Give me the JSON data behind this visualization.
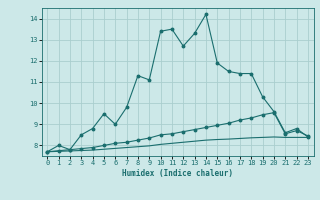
{
  "title": "",
  "xlabel": "Humidex (Indice chaleur)",
  "bg_color": "#cce8e8",
  "grid_color": "#aacece",
  "line_color": "#1a6e6e",
  "xlim": [
    -0.5,
    23.5
  ],
  "ylim": [
    7.5,
    14.5
  ],
  "xticks": [
    0,
    1,
    2,
    3,
    4,
    5,
    6,
    7,
    8,
    9,
    10,
    11,
    12,
    13,
    14,
    15,
    16,
    17,
    18,
    19,
    20,
    21,
    22,
    23
  ],
  "yticks": [
    8,
    9,
    10,
    11,
    12,
    13,
    14
  ],
  "series1_x": [
    0,
    1,
    2,
    3,
    4,
    5,
    6,
    7,
    8,
    9,
    10,
    11,
    12,
    13,
    14,
    15,
    16,
    17,
    18,
    19,
    20,
    21,
    22,
    23
  ],
  "series1_y": [
    7.7,
    8.0,
    7.8,
    8.5,
    8.8,
    9.5,
    9.0,
    9.8,
    11.3,
    11.1,
    13.4,
    13.5,
    12.7,
    13.3,
    14.2,
    11.9,
    11.5,
    11.4,
    11.4,
    10.3,
    9.6,
    8.6,
    8.8,
    8.4
  ],
  "series2_x": [
    0,
    1,
    2,
    3,
    4,
    5,
    6,
    7,
    8,
    9,
    10,
    11,
    12,
    13,
    14,
    15,
    16,
    17,
    18,
    19,
    20,
    21,
    22,
    23
  ],
  "series2_y": [
    7.7,
    7.75,
    7.8,
    7.85,
    7.9,
    8.0,
    8.1,
    8.15,
    8.25,
    8.35,
    8.5,
    8.55,
    8.65,
    8.75,
    8.85,
    8.95,
    9.05,
    9.2,
    9.3,
    9.45,
    9.55,
    8.55,
    8.7,
    8.45
  ],
  "series3_x": [
    0,
    1,
    2,
    3,
    4,
    5,
    6,
    7,
    8,
    9,
    10,
    11,
    12,
    13,
    14,
    15,
    16,
    17,
    18,
    19,
    20,
    21,
    22,
    23
  ],
  "series3_y": [
    7.7,
    7.72,
    7.74,
    7.76,
    7.78,
    7.82,
    7.86,
    7.9,
    7.94,
    7.98,
    8.05,
    8.1,
    8.15,
    8.2,
    8.25,
    8.28,
    8.3,
    8.33,
    8.36,
    8.38,
    8.4,
    8.38,
    8.38,
    8.38
  ]
}
